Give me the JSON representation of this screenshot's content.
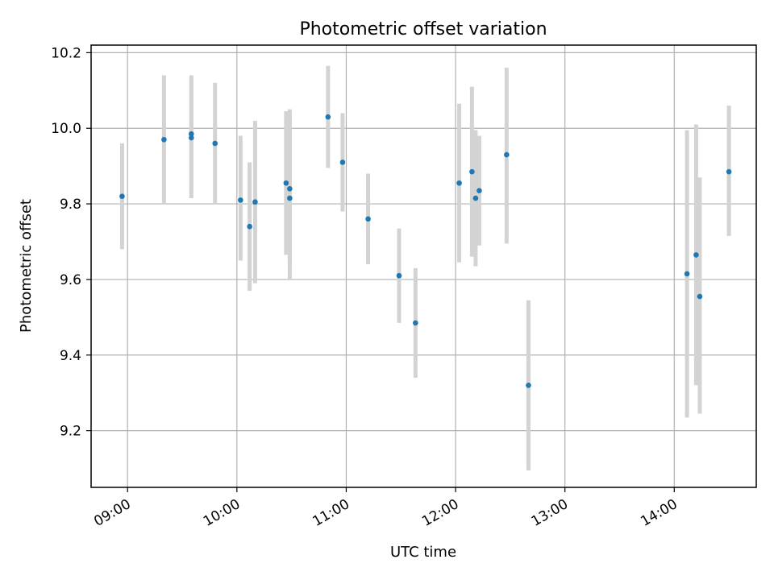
{
  "chart_data": {
    "type": "scatter",
    "title": "Photometric offset variation",
    "xlabel": "UTC time",
    "ylabel": "Photometric offset",
    "x_axis_kind": "time-of-day",
    "xlim": [
      "08:40",
      "14:45"
    ],
    "ylim": [
      9.05,
      10.22
    ],
    "x_ticks": [
      "09:00",
      "10:00",
      "11:00",
      "12:00",
      "13:00",
      "14:00"
    ],
    "y_ticks": [
      "9.2",
      "9.4",
      "9.6",
      "9.8",
      "10.0",
      "10.2"
    ],
    "grid": true,
    "legend": "none",
    "colors": {
      "point": "#1f77b4",
      "errorbar": "#d3d3d3",
      "grid": "#b0b0b0",
      "axes": "#000000"
    },
    "series": [
      {
        "points": [
          {
            "time": "08:57",
            "value": 9.82,
            "low": 9.68,
            "high": 9.96
          },
          {
            "time": "09:20",
            "value": 9.97,
            "low": 9.8,
            "high": 10.14
          },
          {
            "time": "09:35",
            "value": 9.985,
            "low": 9.83,
            "high": 10.14
          },
          {
            "time": "09:35",
            "value": 9.975,
            "low": 9.815,
            "high": 10.135
          },
          {
            "time": "09:48",
            "value": 9.96,
            "low": 9.8,
            "high": 10.12
          },
          {
            "time": "10:02",
            "value": 9.81,
            "low": 9.65,
            "high": 9.98
          },
          {
            "time": "10:07",
            "value": 9.74,
            "low": 9.57,
            "high": 9.91
          },
          {
            "time": "10:10",
            "value": 9.805,
            "low": 9.59,
            "high": 10.02
          },
          {
            "time": "10:27",
            "value": 9.855,
            "low": 9.665,
            "high": 10.045
          },
          {
            "time": "10:29",
            "value": 9.84,
            "low": 9.65,
            "high": 10.03
          },
          {
            "time": "10:29",
            "value": 9.815,
            "low": 9.6,
            "high": 10.05
          },
          {
            "time": "10:50",
            "value": 10.03,
            "low": 9.895,
            "high": 10.165
          },
          {
            "time": "10:58",
            "value": 9.91,
            "low": 9.78,
            "high": 10.04
          },
          {
            "time": "11:12",
            "value": 9.76,
            "low": 9.64,
            "high": 9.88
          },
          {
            "time": "11:29",
            "value": 9.61,
            "low": 9.485,
            "high": 9.735
          },
          {
            "time": "11:38",
            "value": 9.485,
            "low": 9.34,
            "high": 9.63
          },
          {
            "time": "12:02",
            "value": 9.855,
            "low": 9.645,
            "high": 10.065
          },
          {
            "time": "12:09",
            "value": 9.885,
            "low": 9.66,
            "high": 10.11
          },
          {
            "time": "12:11",
            "value": 9.815,
            "low": 9.635,
            "high": 9.995
          },
          {
            "time": "12:13",
            "value": 9.835,
            "low": 9.69,
            "high": 9.98
          },
          {
            "time": "12:28",
            "value": 9.93,
            "low": 9.695,
            "high": 10.16
          },
          {
            "time": "12:40",
            "value": 9.32,
            "low": 9.095,
            "high": 9.545
          },
          {
            "time": "14:07",
            "value": 9.615,
            "low": 9.235,
            "high": 9.995
          },
          {
            "time": "14:12",
            "value": 9.665,
            "low": 9.32,
            "high": 10.01
          },
          {
            "time": "14:14",
            "value": 9.555,
            "low": 9.245,
            "high": 9.87
          },
          {
            "time": "14:30",
            "value": 9.885,
            "low": 9.715,
            "high": 10.06
          }
        ]
      }
    ]
  }
}
